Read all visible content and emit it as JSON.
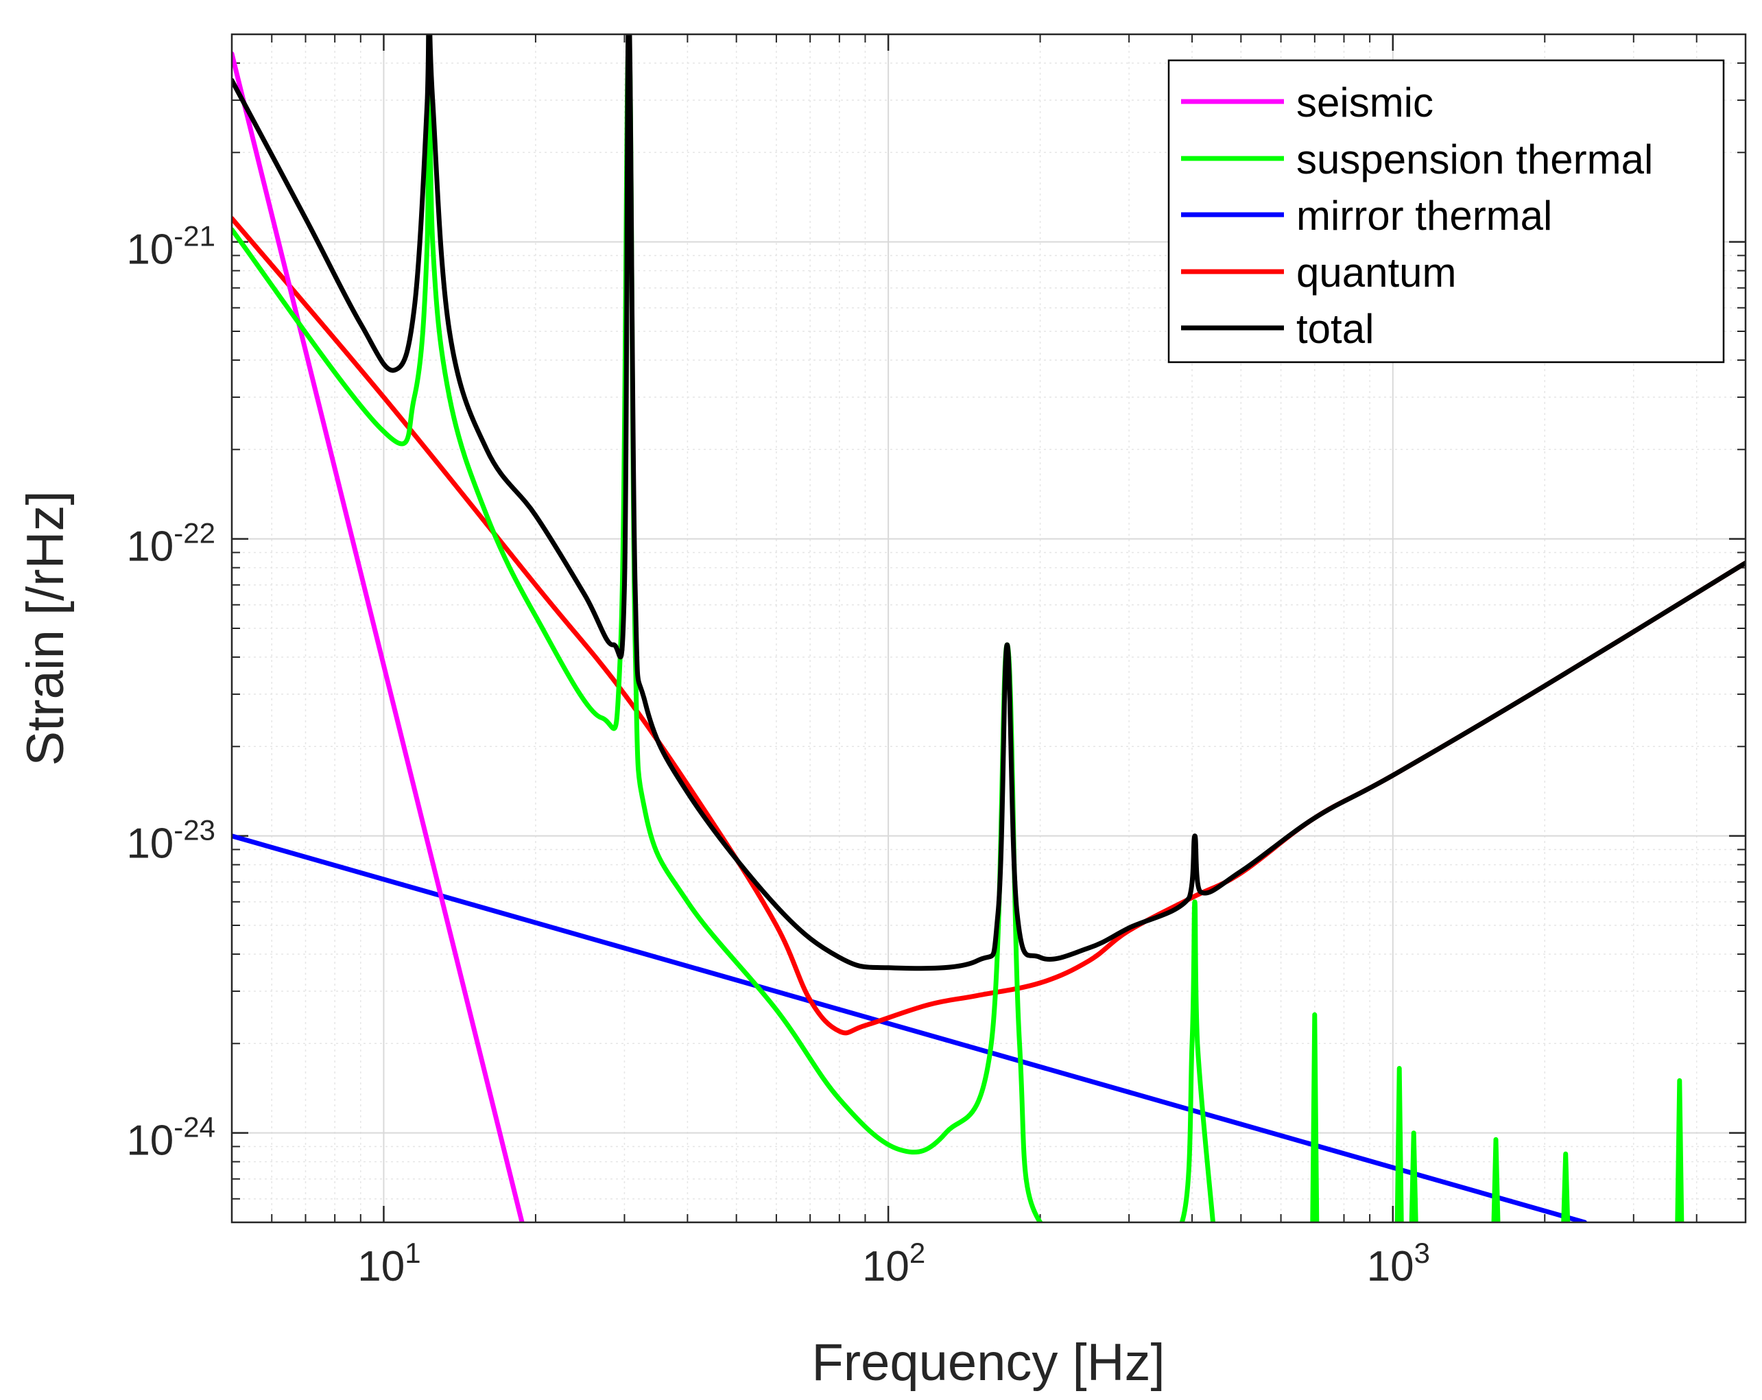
{
  "chart_data": {
    "type": "line",
    "title": "",
    "xlabel": "Frequency [Hz]",
    "ylabel": "Strain [/rHz]",
    "xscale": "log",
    "yscale": "log",
    "xlim": [
      5,
      5000
    ],
    "ylim": [
      5e-25,
      5e-21
    ],
    "grid": true,
    "minor_grid": true,
    "legend_position": "top-right",
    "x_tick_labels": [
      {
        "value": 10,
        "base": "10",
        "exp": "1"
      },
      {
        "value": 100,
        "base": "10",
        "exp": "2"
      },
      {
        "value": 1000,
        "base": "10",
        "exp": "3"
      }
    ],
    "y_tick_labels": [
      {
        "value": 1e-21,
        "base": "10",
        "exp": "-21"
      },
      {
        "value": 1e-22,
        "base": "10",
        "exp": "-22"
      },
      {
        "value": 1e-23,
        "base": "10",
        "exp": "-23"
      },
      {
        "value": 1e-24,
        "base": "10",
        "exp": "-24"
      }
    ],
    "series": [
      {
        "name": "seismic",
        "color": "#ff00ff",
        "points": [
          [
            5,
            4.3e-21
          ],
          [
            18.8,
            5e-25
          ]
        ]
      },
      {
        "name": "suspension thermal",
        "color": "#00ff00",
        "points": [
          [
            5,
            1.1e-21
          ],
          [
            10,
            2.3e-22
          ],
          [
            11.5,
            3e-22
          ],
          [
            12.2,
            1e-21
          ],
          [
            12.3,
            6e-21
          ],
          [
            12.5,
            1e-21
          ],
          [
            13.5,
            3e-22
          ],
          [
            16,
            1.2e-22
          ],
          [
            20,
            5.5e-23
          ],
          [
            27,
            2.5e-23
          ],
          [
            29.5,
            4.5e-23
          ],
          [
            30.6,
            5e-21
          ],
          [
            31.5,
            4.5e-23
          ],
          [
            33,
            1.2e-23
          ],
          [
            40,
            6e-24
          ],
          [
            60,
            2.6e-24
          ],
          [
            80,
            1.3e-24
          ],
          [
            105,
            8.8e-25
          ],
          [
            130,
            1e-24
          ],
          [
            160,
            2e-24
          ],
          [
            172,
            4.4e-23
          ],
          [
            182,
            2e-24
          ],
          [
            200,
            5e-25
          ],
          [
            382,
            5e-25
          ],
          [
            400,
            2e-24
          ],
          [
            405,
            6e-24
          ],
          [
            410,
            2e-24
          ],
          [
            440,
            5e-25
          ]
        ],
        "spikes": [
          [
            700,
            2.5e-24
          ],
          [
            1030,
            1.65e-24
          ],
          [
            1100,
            1e-24
          ],
          [
            1600,
            9.5e-25
          ],
          [
            2200,
            8.5e-25
          ],
          [
            3700,
            1.5e-24
          ]
        ]
      },
      {
        "name": "mirror thermal",
        "color": "#0000ff",
        "points": [
          [
            5,
            1e-23
          ],
          [
            2400,
            5e-25
          ]
        ]
      },
      {
        "name": "quantum",
        "color": "#ff0000",
        "points": [
          [
            5,
            1.2e-21
          ],
          [
            10,
            3e-22
          ],
          [
            20,
            7e-23
          ],
          [
            30,
            3e-23
          ],
          [
            45,
            1.1e-23
          ],
          [
            60,
            5e-24
          ],
          [
            70,
            2.8e-24
          ],
          [
            80,
            2.2e-24
          ],
          [
            90,
            2.3e-24
          ],
          [
            120,
            2.7e-24
          ],
          [
            150,
            2.9e-24
          ],
          [
            200,
            3.2e-24
          ],
          [
            250,
            3.8e-24
          ],
          [
            300,
            4.8e-24
          ],
          [
            400,
            6.2e-24
          ],
          [
            500,
            7.5e-24
          ],
          [
            700,
            1.15e-23
          ],
          [
            1000,
            1.6e-23
          ],
          [
            2000,
            3.2e-23
          ],
          [
            5000,
            8.3e-23
          ]
        ]
      },
      {
        "name": "total",
        "color": "#000000",
        "points": [
          [
            5,
            3.5e-21
          ],
          [
            7,
            1.2e-21
          ],
          [
            9,
            5.3e-22
          ],
          [
            10.5,
            3.7e-22
          ],
          [
            11.5,
            6e-22
          ],
          [
            12.2,
            3e-21
          ],
          [
            12.3,
            6e-21
          ],
          [
            12.5,
            3e-21
          ],
          [
            13.5,
            5e-22
          ],
          [
            16,
            2e-22
          ],
          [
            20,
            1.2e-22
          ],
          [
            25,
            6.5e-23
          ],
          [
            28.5,
            4.4e-23
          ],
          [
            30,
            7e-23
          ],
          [
            30.6,
            6e-21
          ],
          [
            31.5,
            7e-23
          ],
          [
            33,
            2.8e-23
          ],
          [
            40,
            1.4e-23
          ],
          [
            60,
            5.8e-24
          ],
          [
            80,
            3.9e-24
          ],
          [
            100,
            3.6e-24
          ],
          [
            150,
            3.8e-24
          ],
          [
            165,
            5.5e-24
          ],
          [
            172,
            4.4e-23
          ],
          [
            180,
            5.5e-24
          ],
          [
            200,
            3.9e-24
          ],
          [
            250,
            4.2e-24
          ],
          [
            300,
            4.9e-24
          ],
          [
            395,
            6.2e-24
          ],
          [
            405,
            1e-23
          ],
          [
            415,
            6.5e-24
          ],
          [
            500,
            7.6e-24
          ],
          [
            700,
            1.15e-23
          ],
          [
            1000,
            1.6e-23
          ],
          [
            2000,
            3.2e-23
          ],
          [
            5000,
            8.3e-23
          ]
        ]
      }
    ]
  }
}
